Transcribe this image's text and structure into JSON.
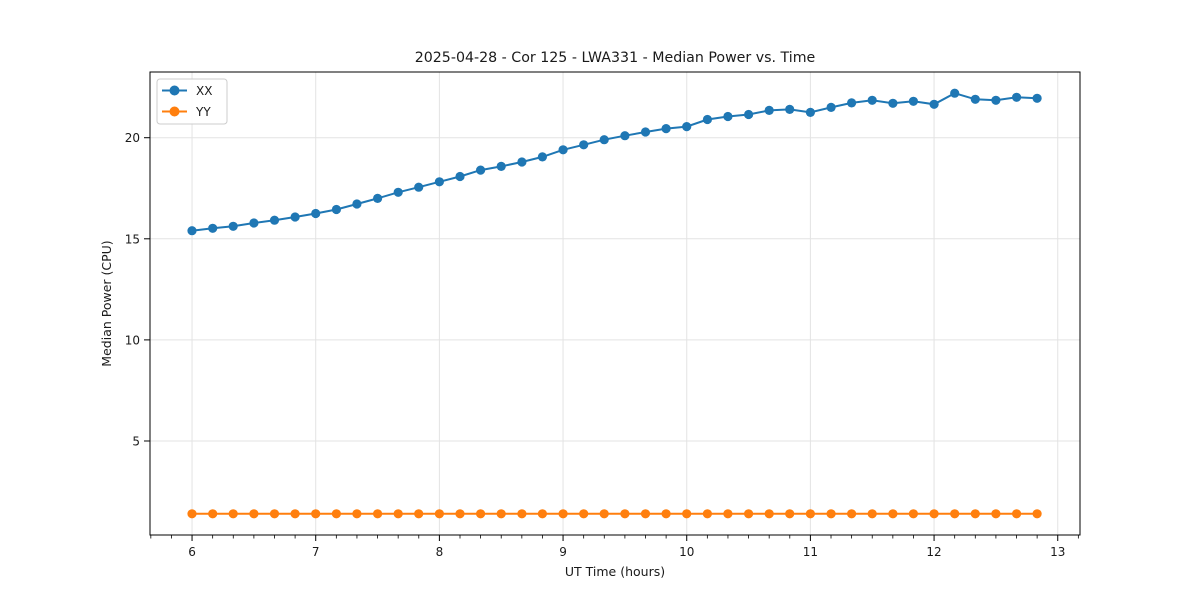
{
  "chart_data": {
    "type": "line",
    "title": "2025-04-28 - Cor 125 - LWA331 - Median Power vs. Time",
    "xlabel": "UT Time (hours)",
    "ylabel": "Median Power (CPU)",
    "xlim": [
      5.66,
      13.18
    ],
    "ylim": [
      0.35,
      23.25
    ],
    "x_ticks": [
      6,
      7,
      8,
      9,
      10,
      11,
      12,
      13
    ],
    "y_ticks": [
      5,
      10,
      15,
      20
    ],
    "x_minor_tick_step": 0.1666667,
    "grid": true,
    "legend_position": "upper-left",
    "x": [
      6.0,
      6.167,
      6.333,
      6.5,
      6.667,
      6.833,
      7.0,
      7.167,
      7.333,
      7.5,
      7.667,
      7.833,
      8.0,
      8.167,
      8.333,
      8.5,
      8.667,
      8.833,
      9.0,
      9.167,
      9.333,
      9.5,
      9.667,
      9.833,
      10.0,
      10.167,
      10.333,
      10.5,
      10.667,
      10.833,
      11.0,
      11.167,
      11.333,
      11.5,
      11.667,
      11.833,
      12.0,
      12.167,
      12.333,
      12.5,
      12.667,
      12.833
    ],
    "series": [
      {
        "name": "XX",
        "color": "#1f77b4",
        "values": [
          15.4,
          15.52,
          15.62,
          15.78,
          15.92,
          16.08,
          16.25,
          16.45,
          16.72,
          17.0,
          17.3,
          17.55,
          17.82,
          18.08,
          18.4,
          18.58,
          18.8,
          19.05,
          19.4,
          19.65,
          19.9,
          20.1,
          20.28,
          20.45,
          20.55,
          20.9,
          21.05,
          21.15,
          21.35,
          21.4,
          21.25,
          21.5,
          21.72,
          21.85,
          21.7,
          21.8,
          21.65,
          22.2,
          21.9,
          21.85,
          22.0,
          21.95
        ]
      },
      {
        "name": "YY",
        "color": "#ff7f0e",
        "values": [
          1.4,
          1.4,
          1.4,
          1.4,
          1.4,
          1.4,
          1.4,
          1.4,
          1.4,
          1.4,
          1.4,
          1.4,
          1.4,
          1.4,
          1.4,
          1.4,
          1.4,
          1.4,
          1.4,
          1.4,
          1.4,
          1.4,
          1.4,
          1.4,
          1.4,
          1.4,
          1.4,
          1.4,
          1.4,
          1.4,
          1.4,
          1.4,
          1.4,
          1.4,
          1.4,
          1.4,
          1.4,
          1.4,
          1.4,
          1.4,
          1.4,
          1.4
        ]
      }
    ]
  },
  "style": {
    "grid_color": "#e3e3e3",
    "spine_color": "#000000",
    "tick_color": "#000000",
    "legend_border_color": "#cccccc",
    "legend_bg_color": "#ffffff",
    "background_color": "#ffffff"
  }
}
